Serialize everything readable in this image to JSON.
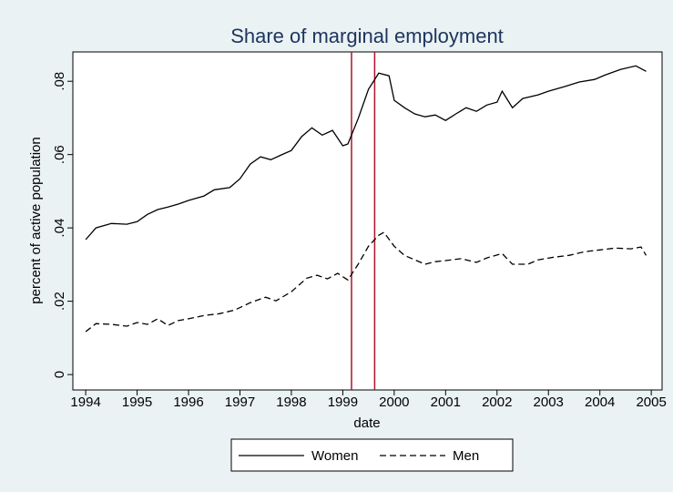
{
  "chart_data": {
    "type": "line",
    "title": "Share of marginal employment",
    "xlabel": "date",
    "ylabel": "percent of active population",
    "xlim": [
      1993.75,
      2005.21
    ],
    "ylim": [
      -0.0042,
      0.088
    ],
    "xticks": [
      1994,
      1995,
      1996,
      1997,
      1998,
      1999,
      2000,
      2001,
      2002,
      2003,
      2004,
      2005
    ],
    "yticks": [
      0,
      {
        "value": 0.02,
        "label": ".02"
      },
      {
        "value": 0.04,
        "label": ".04"
      },
      {
        "value": 0.06,
        "label": ".06"
      },
      {
        "value": 0.08,
        "label": ".08"
      }
    ],
    "reference_lines": {
      "x": [
        1999.17,
        1999.62
      ],
      "color": "#b0122c"
    },
    "legend": "bottom",
    "series": [
      {
        "name": "Women",
        "color": "#000000",
        "dash": "solid",
        "x": [
          1994.0,
          1994.2,
          1994.5,
          1994.8,
          1995.0,
          1995.2,
          1995.4,
          1995.6,
          1995.8,
          1996.0,
          1996.3,
          1996.5,
          1996.8,
          1997.0,
          1997.2,
          1997.4,
          1997.6,
          1997.8,
          1998.0,
          1998.2,
          1998.4,
          1998.6,
          1998.8,
          1999.0,
          1999.1,
          1999.3,
          1999.5,
          1999.7,
          1999.9,
          2000.0,
          2000.2,
          2000.4,
          2000.6,
          2000.8,
          2001.0,
          2001.2,
          2001.4,
          2001.6,
          2001.8,
          2002.0,
          2002.1,
          2002.3,
          2002.5,
          2002.8,
          2003.0,
          2003.3,
          2003.6,
          2003.9,
          2004.1,
          2004.4,
          2004.7,
          2004.9
        ],
        "values": [
          0.0368,
          0.04,
          0.0412,
          0.041,
          0.0417,
          0.0437,
          0.045,
          0.0457,
          0.0465,
          0.0475,
          0.0487,
          0.0504,
          0.051,
          0.0534,
          0.0574,
          0.0594,
          0.0586,
          0.0599,
          0.0611,
          0.0649,
          0.0673,
          0.0653,
          0.0666,
          0.0624,
          0.0629,
          0.0698,
          0.0778,
          0.0822,
          0.0815,
          0.0748,
          0.0728,
          0.0711,
          0.0703,
          0.0708,
          0.0693,
          0.0711,
          0.0728,
          0.0718,
          0.0735,
          0.0743,
          0.0773,
          0.0728,
          0.0753,
          0.0763,
          0.0773,
          0.0785,
          0.0798,
          0.0805,
          0.0817,
          0.0832,
          0.0842,
          0.0827
        ]
      },
      {
        "name": "Men",
        "color": "#000000",
        "dash": "dashed",
        "x": [
          1994.0,
          1994.2,
          1994.5,
          1994.8,
          1995.0,
          1995.2,
          1995.4,
          1995.6,
          1995.8,
          1996.0,
          1996.3,
          1996.6,
          1996.9,
          1997.2,
          1997.5,
          1997.7,
          1998.0,
          1998.3,
          1998.5,
          1998.7,
          1998.9,
          1999.1,
          1999.3,
          1999.5,
          1999.7,
          1999.8,
          2000.0,
          2000.2,
          2000.4,
          2000.6,
          2000.8,
          2001.0,
          2001.3,
          2001.6,
          2001.8,
          2002.1,
          2002.3,
          2002.6,
          2002.8,
          2003.1,
          2003.4,
          2003.7,
          2004.0,
          2004.3,
          2004.6,
          2004.8,
          2004.9
        ],
        "values": [
          0.0117,
          0.0139,
          0.0137,
          0.0132,
          0.0142,
          0.0137,
          0.0152,
          0.0134,
          0.0147,
          0.0152,
          0.0161,
          0.0166,
          0.0176,
          0.0196,
          0.0211,
          0.0201,
          0.0226,
          0.0263,
          0.0271,
          0.0261,
          0.0276,
          0.0258,
          0.0301,
          0.035,
          0.038,
          0.0388,
          0.035,
          0.0325,
          0.0313,
          0.0301,
          0.0308,
          0.0311,
          0.0316,
          0.0306,
          0.0318,
          0.033,
          0.0301,
          0.0301,
          0.0313,
          0.032,
          0.0325,
          0.0335,
          0.034,
          0.0345,
          0.0343,
          0.0348,
          0.0325
        ]
      }
    ]
  }
}
